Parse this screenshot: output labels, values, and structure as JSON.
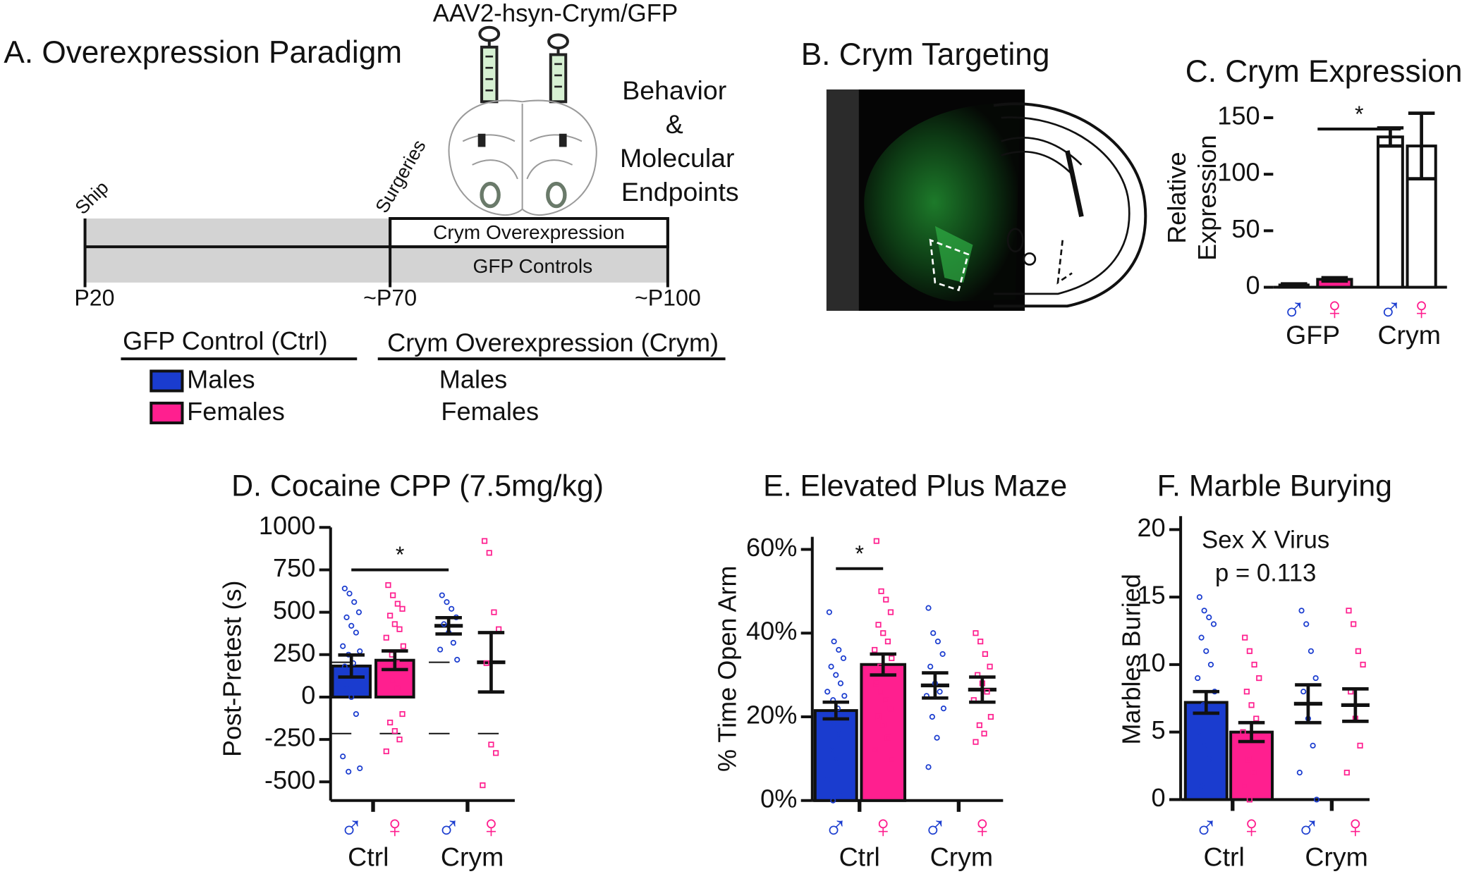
{
  "panel_a": {
    "title": "A. Overexpression Paradigm",
    "virus": "AAV2-hsyn-Crym/GFP",
    "outcome": [
      "Behavior",
      "&",
      "Molecular",
      "Endpoints"
    ],
    "events": [
      "Ship",
      "Surgeries"
    ],
    "groups": [
      "Crym Overexpression",
      "GFP Controls"
    ],
    "ages": [
      "P20",
      "~P70",
      "~P100"
    ],
    "legend": {
      "headers": [
        "GFP Control (Ctrl)",
        "Crym Overexpression (Crym)"
      ],
      "ctrl_rows": [
        "Males",
        "Females"
      ],
      "crym_rows": [
        "Males",
        "Females"
      ],
      "colors": [
        "#1a3ccf",
        "#ff1f8f"
      ]
    }
  },
  "panel_b": {
    "title": "B. Crym Targeting"
  },
  "chart_data": [
    {
      "type": "bar",
      "title": "C. Crym Expression",
      "ylabel": [
        "Relative",
        "Expression"
      ],
      "categories": [
        "♂",
        "♀",
        "♂",
        "♀"
      ],
      "category_colors": [
        "#1a3ccf",
        "#ff1f8f",
        "#1a3ccf",
        "#ff1f8f"
      ],
      "groups": [
        "GFP",
        "Crym"
      ],
      "values": [
        2,
        7,
        133,
        125
      ],
      "errors": [
        1,
        1.5,
        8,
        29
      ],
      "bar_colors": [
        "#1a3ccf",
        "#ff1f8f",
        "#ffffff",
        "#ffffff"
      ],
      "ylim": [
        0,
        155
      ],
      "yticks": [
        0,
        50,
        100,
        150
      ],
      "significance": {
        "label": "*",
        "y": 140
      }
    },
    {
      "type": "bar",
      "title": "D. Cocaine CPP (7.5mg/kg)",
      "ylabel": "Post-Pretest (s)",
      "categories": [
        "♂",
        "♀",
        "♂",
        "♀"
      ],
      "category_colors": [
        "#1a3ccf",
        "#ff1f8f",
        "#1a3ccf",
        "#ff1f8f"
      ],
      "groups": [
        "Ctrl",
        "Crym"
      ],
      "values": [
        183,
        217,
        420,
        205
      ],
      "errors": [
        65,
        55,
        48,
        175
      ],
      "bar_colors": [
        "#1a3ccf",
        "#ff1f8f",
        "none",
        "none"
      ],
      "points": [
        [
          640,
          610,
          560,
          500,
          470,
          420,
          380,
          300,
          270,
          250,
          200,
          180,
          150,
          120,
          80,
          50,
          0,
          -100,
          -350,
          -420,
          -440
        ],
        [
          660,
          600,
          550,
          520,
          480,
          430,
          400,
          350,
          300,
          250,
          200,
          170,
          100,
          50,
          -100,
          -150,
          -200,
          -250,
          -320
        ],
        [
          600,
          560,
          520,
          470,
          430,
          380,
          320,
          280,
          220
        ],
        [
          920,
          850,
          500,
          400,
          200,
          -280,
          -330,
          -520
        ]
      ],
      "reference_lines": [
        205,
        -215
      ],
      "ylim": [
        -610,
        1000
      ],
      "yticks": [
        -500,
        -250,
        0,
        250,
        500,
        750,
        1000
      ],
      "significance": {
        "label": "*",
        "y": 750
      }
    },
    {
      "type": "bar",
      "title": "E. Elevated Plus Maze",
      "ylabel": "% Time Open Arm",
      "categories": [
        "♂",
        "♀",
        "♂",
        "♀"
      ],
      "category_colors": [
        "#1a3ccf",
        "#ff1f8f",
        "#1a3ccf",
        "#ff1f8f"
      ],
      "groups": [
        "Ctrl",
        "Crym"
      ],
      "values": [
        21.5,
        32.5,
        27.5,
        26.5
      ],
      "errors": [
        2,
        2.5,
        3,
        3
      ],
      "bar_colors": [
        "#1a3ccf",
        "#ff1f8f",
        "none",
        "none"
      ],
      "points": [
        [
          45,
          38,
          36,
          34,
          32,
          30,
          28,
          26,
          25,
          24,
          22,
          20,
          18,
          16,
          14,
          12,
          10,
          8,
          5,
          2,
          0
        ],
        [
          62,
          50,
          48,
          45,
          42,
          40,
          38,
          36,
          34,
          32,
          30,
          28,
          26,
          24,
          22,
          20,
          18,
          15,
          12,
          10
        ],
        [
          46,
          40,
          38,
          35,
          32,
          28,
          26,
          25,
          22,
          20,
          15,
          8
        ],
        [
          40,
          38,
          35,
          32,
          30,
          28,
          26,
          24,
          20,
          18,
          16,
          14
        ]
      ],
      "ylim": [
        0,
        63
      ],
      "yticks": [
        {
          "value": 0,
          "label": "0%"
        },
        {
          "value": 20,
          "label": "20%"
        },
        {
          "value": 40,
          "label": "40%"
        },
        {
          "value": 60,
          "label": "60%"
        }
      ],
      "significance": {
        "label": "*",
        "y": 55.4
      }
    },
    {
      "type": "bar",
      "title": "F. Marble Burying",
      "ylabel": "Marbles Buried",
      "categories": [
        "♂",
        "♀",
        "♂",
        "♀"
      ],
      "category_colors": [
        "#1a3ccf",
        "#ff1f8f",
        "#1a3ccf",
        "#ff1f8f"
      ],
      "groups": [
        "Ctrl",
        "Crym"
      ],
      "values": [
        7.2,
        5,
        7.1,
        7
      ],
      "errors": [
        0.8,
        0.7,
        1.4,
        1.2
      ],
      "bar_colors": [
        "#1a3ccf",
        "#ff1f8f",
        "none",
        "none"
      ],
      "points": [
        [
          15,
          14,
          13.5,
          13,
          12,
          11,
          10,
          9,
          8,
          7,
          6,
          5,
          4,
          3,
          2,
          1
        ],
        [
          12,
          11,
          10,
          9,
          8,
          7,
          6,
          5,
          4,
          3,
          2,
          1,
          0
        ],
        [
          14,
          13,
          11,
          9,
          8,
          6,
          4,
          2,
          0
        ],
        [
          14,
          13,
          11,
          10,
          8,
          6,
          4,
          2
        ]
      ],
      "ylim": [
        0,
        21
      ],
      "yticks": [
        0,
        5,
        10,
        15,
        20
      ],
      "annotations": [
        "Sex X Virus",
        "p = 0.113"
      ]
    }
  ]
}
